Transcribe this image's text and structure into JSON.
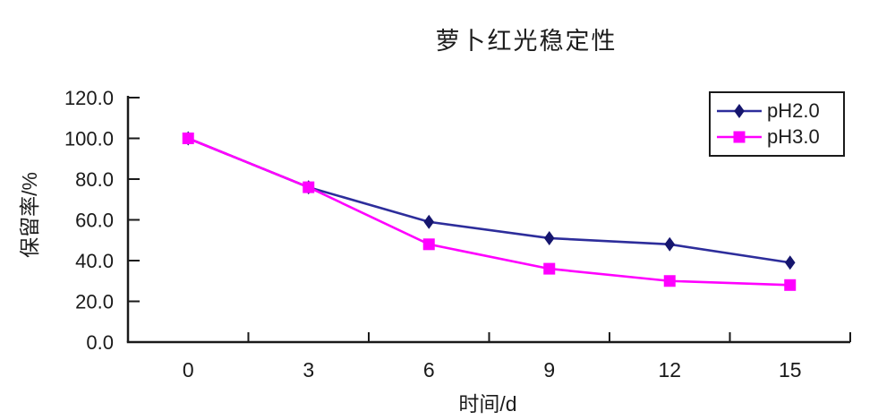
{
  "chart_data": {
    "type": "line",
    "title": "萝卜红光稳定性",
    "xlabel": "时间/d",
    "ylabel": "保留率/%",
    "x": [
      0,
      3,
      6,
      9,
      12,
      15
    ],
    "x_tick_labels": [
      "0",
      "3",
      "6",
      "9",
      "12",
      "15"
    ],
    "ylim": [
      0,
      120
    ],
    "y_ticks": [
      0,
      20,
      40,
      60,
      80,
      100,
      120
    ],
    "y_tick_labels": [
      "0.0",
      "20.0",
      "40.0",
      "60.0",
      "80.0",
      "100.0",
      "120.0"
    ],
    "grid": false,
    "legend_position": "top-right",
    "axis_color": "#1a1a1a",
    "series": [
      {
        "name": "pH2.0",
        "marker": "diamond",
        "color": "#2d2d9b",
        "marker_color": "#16166e",
        "values": [
          100,
          76,
          59,
          51,
          48,
          39
        ]
      },
      {
        "name": "pH3.0",
        "marker": "square",
        "color": "#ff00ff",
        "marker_color": "#ff00ff",
        "values": [
          100,
          76,
          48,
          36,
          30,
          28
        ]
      }
    ]
  }
}
